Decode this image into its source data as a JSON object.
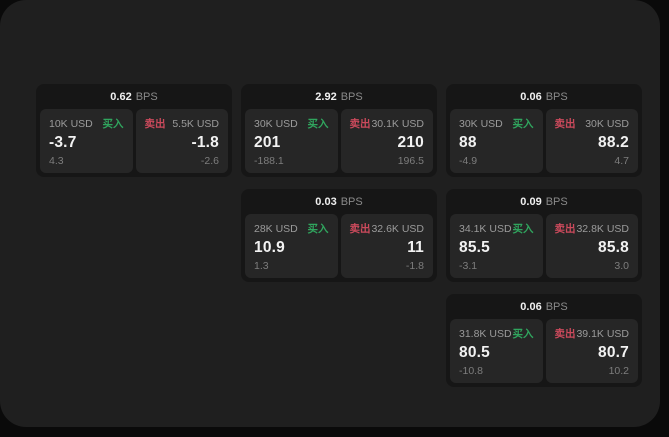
{
  "labels": {
    "bps": "BPS",
    "buy": "买入",
    "sell": "卖出"
  },
  "colors": {
    "page_background": "#0a0a0a",
    "window_background": "#1f1f1f",
    "card_background": "#161616",
    "tile_background": "#262626",
    "buy_green": "#30a55e",
    "sell_red": "#cc4a5c",
    "value_white": "#f2f2f2",
    "label_gray": "#9b9b9b"
  },
  "cards": [
    {
      "bps": "0.62",
      "buy": {
        "size": "10K USD",
        "value": "-3.7",
        "delta": "4.3"
      },
      "sell": {
        "size": "5.5K USD",
        "value": "-1.8",
        "delta": "-2.6"
      }
    },
    {
      "bps": "2.92",
      "buy": {
        "size": "30K USD",
        "value": "201",
        "delta": "-188.1"
      },
      "sell": {
        "size": "30.1K USD",
        "value": "210",
        "delta": "196.5"
      }
    },
    {
      "bps": "0.06",
      "buy": {
        "size": "30K USD",
        "value": "88",
        "delta": "-4.9"
      },
      "sell": {
        "size": "30K USD",
        "value": "88.2",
        "delta": "4.7"
      }
    },
    {
      "bps": "0.03",
      "buy": {
        "size": "28K USD",
        "value": "10.9",
        "delta": "1.3"
      },
      "sell": {
        "size": "32.6K USD",
        "value": "11",
        "delta": "-1.8"
      }
    },
    {
      "bps": "0.09",
      "buy": {
        "size": "34.1K USD",
        "value": "85.5",
        "delta": "-3.1"
      },
      "sell": {
        "size": "32.8K USD",
        "value": "85.8",
        "delta": "3.0"
      }
    },
    {
      "bps": "0.06",
      "buy": {
        "size": "31.8K USD",
        "value": "80.5",
        "delta": "-10.8"
      },
      "sell": {
        "size": "39.1K USD",
        "value": "80.7",
        "delta": "10.2"
      }
    }
  ]
}
